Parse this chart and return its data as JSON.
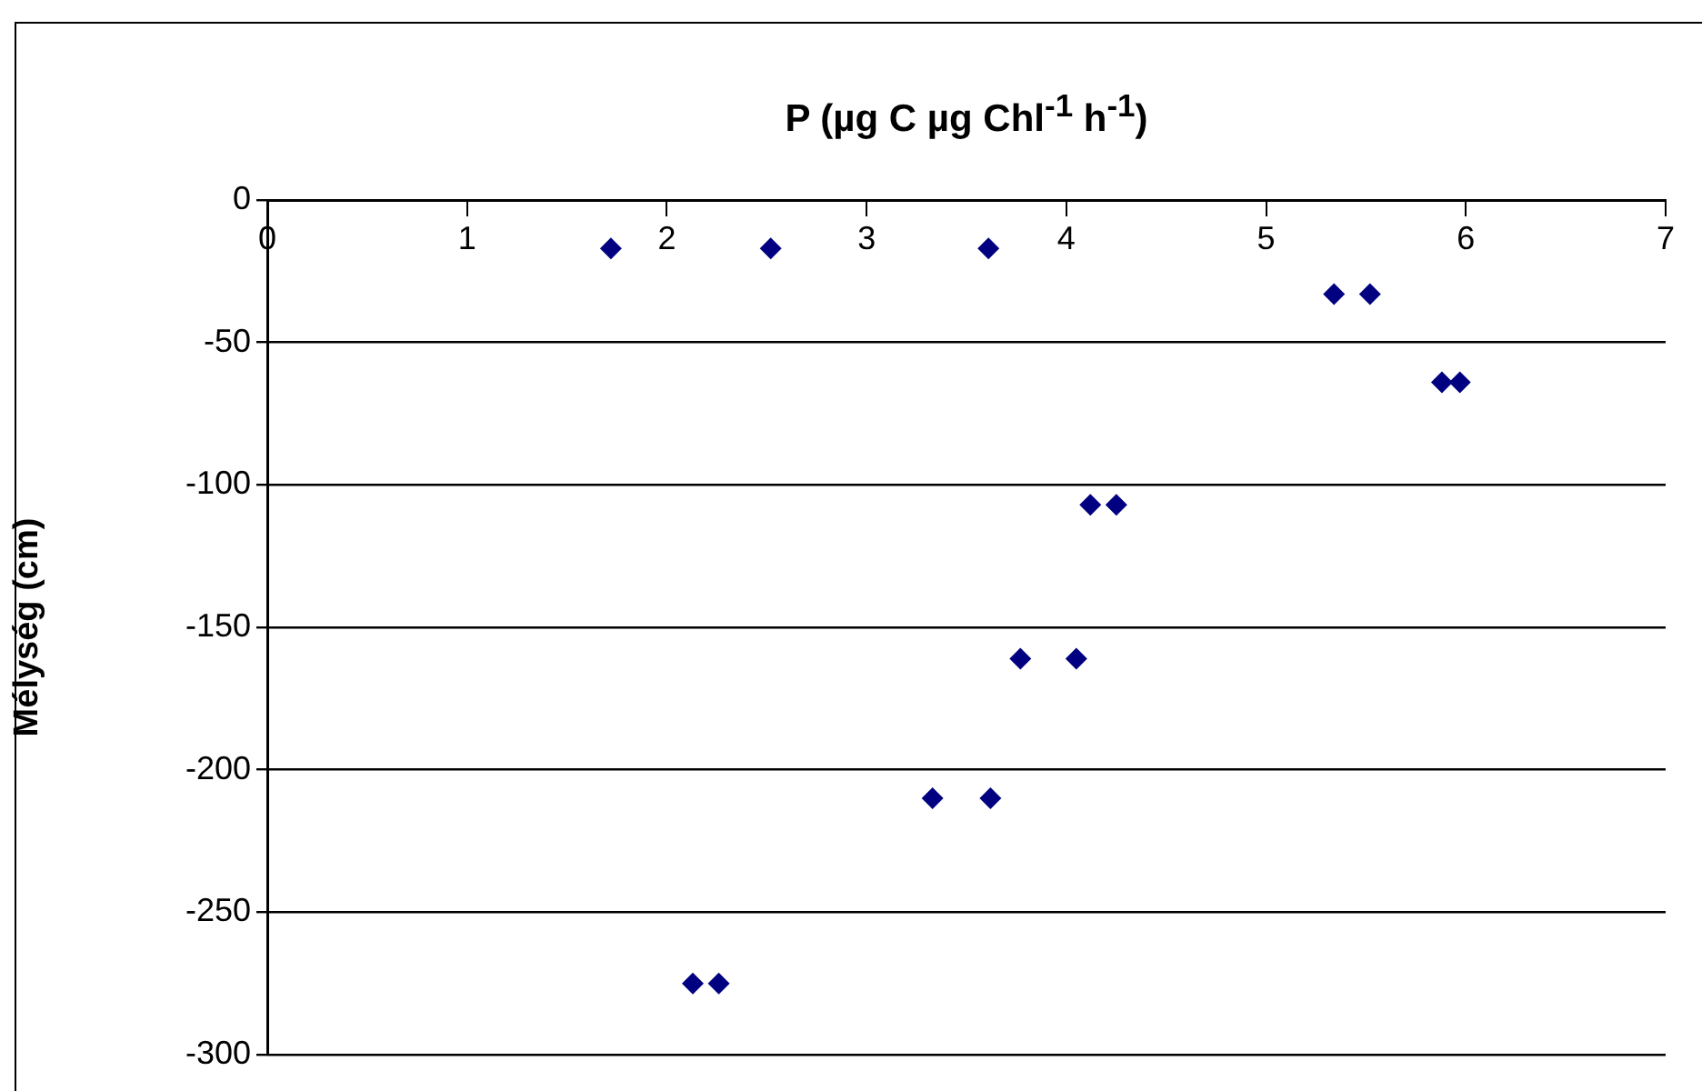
{
  "chart_data": {
    "type": "scatter",
    "title": "P (µg C µg Chl$^{-1}$ h$^{-1}$)",
    "ylabel": "Mélység (cm)",
    "x": [
      1.72,
      2.52,
      3.61,
      5.34,
      5.52,
      5.88,
      5.97,
      4.12,
      4.25,
      3.77,
      4.05,
      3.33,
      3.62,
      2.13,
      2.26
    ],
    "values": [
      -17,
      -17,
      -17,
      -33,
      -33,
      -64,
      -64,
      -107,
      -107,
      -161,
      -161,
      -210,
      -210,
      -275,
      -275
    ],
    "color": "#000080",
    "marker": "diamond",
    "grid": "y",
    "xlim": [
      0,
      7
    ],
    "xticks": [
      0,
      1,
      2,
      3,
      4,
      5,
      6,
      7
    ],
    "ylim": [
      -300,
      0
    ],
    "yticks": [
      -300,
      -250,
      -200,
      -150,
      -100,
      -50,
      0
    ]
  }
}
